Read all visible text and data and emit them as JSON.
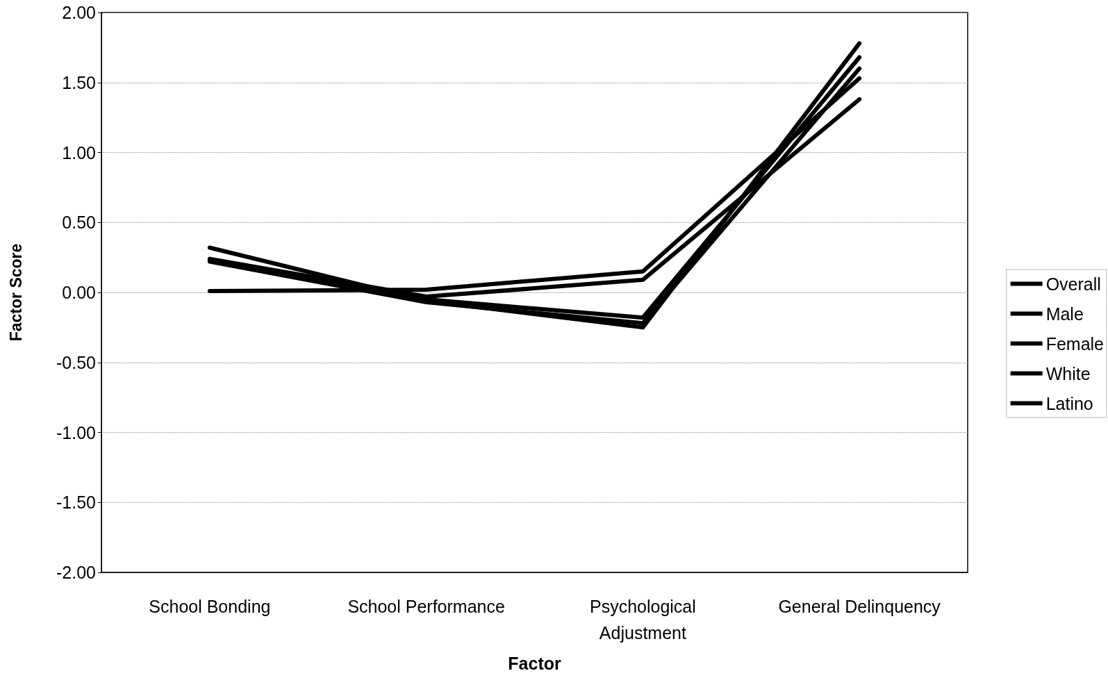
{
  "chart_data": {
    "type": "line",
    "xlabel": "Factor",
    "ylabel": "Factor Score",
    "categories": [
      "School Bonding",
      "School Performance",
      "Psychological\nAdjustment",
      "General Delinquency"
    ],
    "series": [
      {
        "name": "Overall",
        "color": "#000000",
        "values": [
          0.23,
          -0.05,
          -0.18,
          1.68
        ]
      },
      {
        "name": "Male",
        "color": "#000000",
        "values": [
          0.32,
          -0.06,
          -0.25,
          1.78
        ]
      },
      {
        "name": "Female",
        "color": "#000000",
        "values": [
          0.22,
          -0.07,
          -0.22,
          1.6
        ]
      },
      {
        "name": "White",
        "color": "#000000",
        "values": [
          0.24,
          -0.03,
          0.09,
          1.38
        ]
      },
      {
        "name": "Latino",
        "color": "#000000",
        "values": [
          0.01,
          0.02,
          0.15,
          1.53
        ]
      }
    ],
    "ylim": [
      -2,
      2
    ],
    "yticks": [
      {
        "value": -2,
        "label": "-2.00"
      },
      {
        "value": -1.5,
        "label": "-1.50"
      },
      {
        "value": -1,
        "label": "-1.00"
      },
      {
        "value": -0.5,
        "label": "-0.50"
      },
      {
        "value": 0,
        "label": "0.00"
      },
      {
        "value": 0.5,
        "label": "0.50"
      },
      {
        "value": 1,
        "label": "1.00"
      },
      {
        "value": 1.5,
        "label": "1.50"
      },
      {
        "value": 2,
        "label": "2.00"
      }
    ],
    "grid": "y",
    "legend": "right",
    "marker": "none",
    "line_style": "solid"
  }
}
